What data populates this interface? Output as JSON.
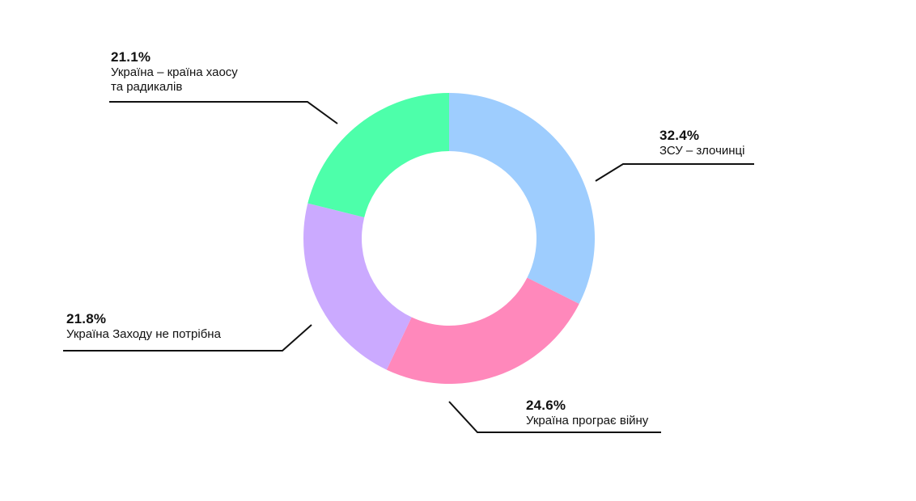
{
  "chart_data": {
    "type": "pie",
    "title": "",
    "slices": [
      {
        "value": 32.4,
        "value_label": "32.4%",
        "label": "ЗСУ – злочинці",
        "color": "#9ecdfe"
      },
      {
        "value": 24.6,
        "value_label": "24.6%",
        "label": "Україна програє війну",
        "color": "#ff88bb"
      },
      {
        "value": 21.8,
        "value_label": "21.8%",
        "label": "Україна Заходу не потрібна",
        "color": "#cbaaff"
      },
      {
        "value": 21.1,
        "value_label": "21.1%",
        "label": "Україна – країна хаосу\nта радикалів",
        "color": "#4dffaa"
      }
    ],
    "legend": "none"
  }
}
